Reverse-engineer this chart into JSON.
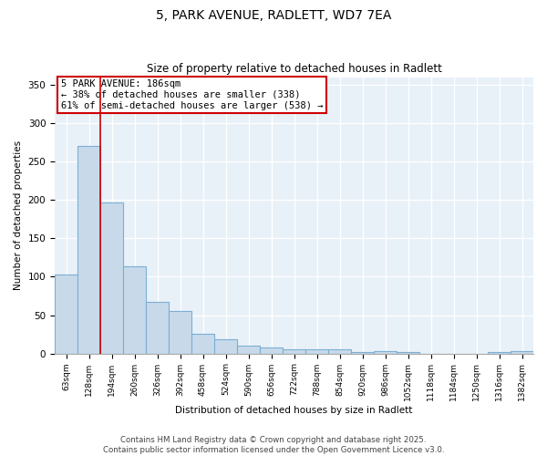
{
  "title1": "5, PARK AVENUE, RADLETT, WD7 7EA",
  "title2": "Size of property relative to detached houses in Radlett",
  "xlabel": "Distribution of detached houses by size in Radlett",
  "ylabel": "Number of detached properties",
  "bar_color": "#c8daea",
  "bar_edge_color": "#7bafd4",
  "marker_color": "#cc0000",
  "annotation_text": "5 PARK AVENUE: 186sqm\n← 38% of detached houses are smaller (338)\n61% of semi-detached houses are larger (538) →",
  "annotation_box_color": "#cc0000",
  "property_bin_index": 1.5,
  "categories": [
    "63sqm",
    "128sqm",
    "194sqm",
    "260sqm",
    "326sqm",
    "392sqm",
    "458sqm",
    "524sqm",
    "590sqm",
    "656sqm",
    "722sqm",
    "788sqm",
    "854sqm",
    "920sqm",
    "986sqm",
    "1052sqm",
    "1118sqm",
    "1184sqm",
    "1250sqm",
    "1316sqm",
    "1382sqm"
  ],
  "values": [
    103,
    270,
    197,
    114,
    67,
    55,
    26,
    18,
    10,
    8,
    5,
    6,
    5,
    2,
    3,
    2,
    0,
    0,
    0,
    2,
    3
  ],
  "ylim": [
    0,
    360
  ],
  "yticks": [
    0,
    50,
    100,
    150,
    200,
    250,
    300,
    350
  ],
  "footer": "Contains HM Land Registry data © Crown copyright and database right 2025.\nContains public sector information licensed under the Open Government Licence v3.0.",
  "bg_color": "#e8f0f8",
  "fig_width": 6.0,
  "fig_height": 5.0,
  "dpi": 100
}
